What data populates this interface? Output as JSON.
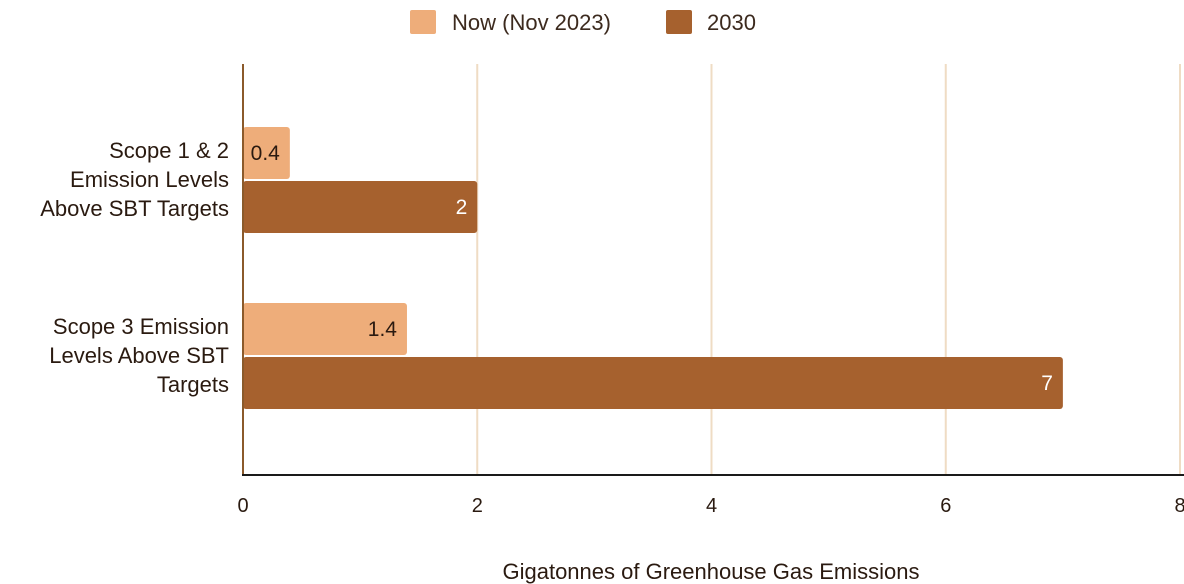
{
  "chart_data": {
    "type": "bar",
    "orientation": "horizontal",
    "categories": [
      "Scope 1 & 2 Emission Levels Above SBT Targets",
      "Scope 3 Emission Levels Above SBT Targets"
    ],
    "category_label_lines": [
      [
        "Scope 1 & 2",
        "Emission Levels",
        "Above SBT Targets"
      ],
      [
        "Scope 3 Emission",
        "Levels Above SBT",
        "Targets"
      ]
    ],
    "series": [
      {
        "name": "Now (Nov 2023)",
        "values": [
          0.4,
          1.4
        ],
        "value_labels": [
          "0.4",
          "1.4"
        ],
        "color": "#EEAD7A",
        "label_color": "#2a1a10"
      },
      {
        "name": "2030",
        "values": [
          2,
          7
        ],
        "value_labels": [
          "2",
          "7"
        ],
        "color": "#A6612E",
        "label_color": "#ffffff"
      }
    ],
    "title": "",
    "xlabel": "Gigatonnes of Greenhouse Gas Emissions",
    "ylabel": "",
    "xlim": [
      0,
      8
    ],
    "xticks": [
      0,
      2,
      4,
      6,
      8
    ],
    "xtick_labels": [
      "0",
      "2",
      "4",
      "6",
      "8"
    ],
    "grid": "vertical",
    "legend_position": "top-center",
    "gridline_color": "#EFDCC4",
    "axis_color": "#8B5A2B"
  }
}
